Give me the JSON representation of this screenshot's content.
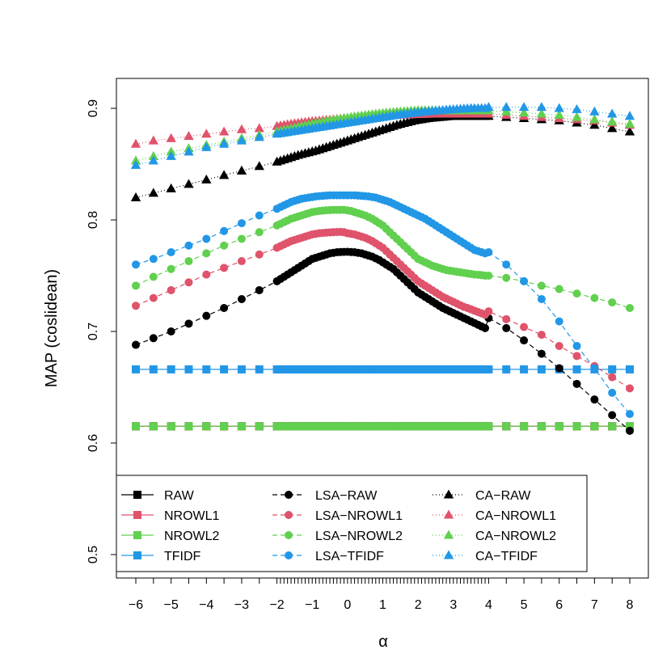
{
  "chart_data": {
    "type": "line",
    "xlabel": "α",
    "ylabel": "MAP (coslidean)",
    "xlim": [
      -6.5,
      8.5
    ],
    "ylim": [
      0.49,
      0.925
    ],
    "x_ticks": [
      -6,
      -5,
      -4,
      -3,
      -2,
      -1,
      0,
      1,
      2,
      3,
      4,
      5,
      6,
      7,
      8
    ],
    "x_tick_labels": [
      "−6",
      "−5",
      "−4",
      "−3",
      "−2",
      "−1",
      "0",
      "1",
      "2",
      "3",
      "4",
      "5",
      "6",
      "7",
      "8"
    ],
    "y_ticks": [
      0.5,
      0.6,
      0.7,
      0.8,
      0.9
    ],
    "y_tick_labels": [
      "0.5",
      "0.6",
      "0.7",
      "0.8",
      "0.9"
    ],
    "x": [
      -6,
      -5.5,
      -5,
      -4.5,
      -4,
      -3.5,
      -3,
      -2.5,
      -2,
      -1.9,
      -1.8,
      -1.7,
      -1.6,
      -1.5,
      -1.4,
      -1.3,
      -1.2,
      -1.1,
      -1,
      -0.9,
      -0.8,
      -0.7,
      -0.6,
      -0.5,
      -0.4,
      -0.3,
      -0.2,
      -0.1,
      0,
      0.1,
      0.2,
      0.3,
      0.4,
      0.5,
      0.6,
      0.7,
      0.8,
      0.9,
      1,
      1.1,
      1.2,
      1.3,
      1.4,
      1.5,
      1.6,
      1.7,
      1.8,
      1.9,
      2,
      2.1,
      2.2,
      2.3,
      2.4,
      2.5,
      2.6,
      2.7,
      2.8,
      2.9,
      3,
      3.1,
      3.2,
      3.3,
      3.4,
      3.5,
      3.6,
      3.7,
      3.8,
      3.9,
      4,
      4.5,
      5,
      5.5,
      6,
      6.5,
      7,
      7.5,
      8
    ],
    "colors": {
      "RAW": "#000000",
      "NROWL1": "#DF536B",
      "NROWL2": "#61D04F",
      "TFIDF": "#2297E6"
    },
    "legend": {
      "placement": "bottom-left",
      "columns": [
        [
          "RAW",
          "NROWL1",
          "NROWL2",
          "TFIDF"
        ],
        [
          "LSA−RAW",
          "LSA−NROWL1",
          "LSA−NROWL2",
          "LSA−TFIDF"
        ],
        [
          "CA−RAW",
          "CA−NROWL1",
          "CA−NROWL2",
          "CA−TFIDF"
        ]
      ]
    },
    "series": [
      {
        "name": "RAW",
        "method": "plain",
        "base": "RAW",
        "constant": 0.615
      },
      {
        "name": "NROWL1",
        "method": "plain",
        "base": "NROWL1",
        "constant": 0.615
      },
      {
        "name": "NROWL2",
        "method": "plain",
        "base": "NROWL2",
        "constant": 0.615
      },
      {
        "name": "TFIDF",
        "method": "plain",
        "base": "TFIDF",
        "constant": 0.666
      },
      {
        "name": "LSA−RAW",
        "method": "lsa",
        "base": "RAW",
        "values": [
          0.688,
          0.694,
          0.7,
          0.707,
          0.714,
          0.721,
          0.729,
          0.737,
          0.745,
          0.747,
          0.749,
          0.751,
          0.753,
          0.755,
          0.757,
          0.759,
          0.761,
          0.763,
          0.765,
          0.766,
          0.767,
          0.768,
          0.769,
          0.77,
          0.7705,
          0.771,
          0.7712,
          0.7713,
          0.7714,
          0.7712,
          0.771,
          0.7705,
          0.77,
          0.769,
          0.768,
          0.767,
          0.7655,
          0.764,
          0.762,
          0.76,
          0.758,
          0.756,
          0.753,
          0.75,
          0.747,
          0.744,
          0.741,
          0.738,
          0.735,
          0.733,
          0.731,
          0.729,
          0.727,
          0.725,
          0.723,
          0.721,
          0.7195,
          0.718,
          0.7165,
          0.715,
          0.7135,
          0.712,
          0.7105,
          0.709,
          0.7075,
          0.706,
          0.7045,
          0.703,
          0.712,
          0.703,
          0.692,
          0.68,
          0.667,
          0.653,
          0.639,
          0.625,
          0.611
        ]
      },
      {
        "name": "LSA−NROWL1",
        "method": "lsa",
        "base": "NROWL1",
        "values": [
          0.723,
          0.73,
          0.737,
          0.744,
          0.751,
          0.757,
          0.763,
          0.769,
          0.775,
          0.7765,
          0.778,
          0.7795,
          0.781,
          0.782,
          0.783,
          0.784,
          0.785,
          0.786,
          0.787,
          0.7875,
          0.788,
          0.7883,
          0.7886,
          0.7888,
          0.789,
          0.7891,
          0.7892,
          0.789,
          0.788,
          0.7875,
          0.787,
          0.786,
          0.785,
          0.784,
          0.7825,
          0.781,
          0.779,
          0.777,
          0.775,
          0.772,
          0.769,
          0.766,
          0.763,
          0.76,
          0.757,
          0.754,
          0.751,
          0.748,
          0.745,
          0.743,
          0.741,
          0.739,
          0.737,
          0.735,
          0.733,
          0.731,
          0.7295,
          0.728,
          0.7265,
          0.725,
          0.7235,
          0.722,
          0.721,
          0.7198,
          0.7186,
          0.7174,
          0.7162,
          0.715,
          0.718,
          0.711,
          0.704,
          0.697,
          0.687,
          0.678,
          0.669,
          0.659,
          0.649
        ]
      },
      {
        "name": "LSA−NROWL2",
        "method": "lsa",
        "base": "NROWL2",
        "values": [
          0.741,
          0.749,
          0.756,
          0.763,
          0.77,
          0.777,
          0.783,
          0.789,
          0.795,
          0.7965,
          0.798,
          0.7995,
          0.801,
          0.802,
          0.803,
          0.804,
          0.805,
          0.806,
          0.807,
          0.8075,
          0.808,
          0.8083,
          0.8086,
          0.8088,
          0.809,
          0.809,
          0.809,
          0.809,
          0.8085,
          0.808,
          0.807,
          0.806,
          0.805,
          0.804,
          0.8025,
          0.801,
          0.799,
          0.797,
          0.795,
          0.792,
          0.789,
          0.786,
          0.783,
          0.78,
          0.777,
          0.774,
          0.771,
          0.768,
          0.765,
          0.7635,
          0.762,
          0.7605,
          0.759,
          0.758,
          0.757,
          0.756,
          0.755,
          0.7545,
          0.754,
          0.7535,
          0.753,
          0.7525,
          0.752,
          0.7515,
          0.751,
          0.7508,
          0.7505,
          0.75,
          0.75,
          0.748,
          0.745,
          0.741,
          0.738,
          0.734,
          0.73,
          0.726,
          0.721
        ]
      },
      {
        "name": "LSA−TFIDF",
        "method": "lsa",
        "base": "TFIDF",
        "values": [
          0.76,
          0.765,
          0.771,
          0.777,
          0.783,
          0.79,
          0.797,
          0.804,
          0.81,
          0.8115,
          0.813,
          0.8145,
          0.816,
          0.817,
          0.818,
          0.819,
          0.8195,
          0.82,
          0.8205,
          0.821,
          0.8213,
          0.8216,
          0.8218,
          0.822,
          0.822,
          0.822,
          0.822,
          0.822,
          0.822,
          0.822,
          0.822,
          0.8218,
          0.8216,
          0.8213,
          0.821,
          0.8205,
          0.82,
          0.819,
          0.818,
          0.817,
          0.816,
          0.8145,
          0.813,
          0.8115,
          0.81,
          0.8085,
          0.807,
          0.8055,
          0.804,
          0.8025,
          0.801,
          0.799,
          0.797,
          0.795,
          0.793,
          0.791,
          0.789,
          0.787,
          0.785,
          0.783,
          0.781,
          0.779,
          0.777,
          0.775,
          0.773,
          0.772,
          0.771,
          0.77,
          0.771,
          0.76,
          0.745,
          0.729,
          0.709,
          0.687,
          0.667,
          0.645,
          0.626
        ]
      },
      {
        "name": "CA−RAW",
        "method": "ca",
        "base": "RAW",
        "values": [
          0.82,
          0.824,
          0.828,
          0.832,
          0.836,
          0.84,
          0.844,
          0.848,
          0.852,
          0.853,
          0.854,
          0.855,
          0.856,
          0.857,
          0.858,
          0.8588,
          0.8596,
          0.8604,
          0.8612,
          0.862,
          0.863,
          0.864,
          0.865,
          0.866,
          0.867,
          0.868,
          0.869,
          0.87,
          0.871,
          0.872,
          0.873,
          0.874,
          0.875,
          0.876,
          0.877,
          0.878,
          0.879,
          0.88,
          0.881,
          0.882,
          0.883,
          0.884,
          0.885,
          0.8858,
          0.8866,
          0.8874,
          0.8882,
          0.889,
          0.8895,
          0.89,
          0.8905,
          0.891,
          0.8913,
          0.8916,
          0.8919,
          0.8922,
          0.8925,
          0.8928,
          0.893,
          0.893,
          0.893,
          0.893,
          0.893,
          0.893,
          0.893,
          0.893,
          0.893,
          0.893,
          0.893,
          0.892,
          0.891,
          0.89,
          0.889,
          0.887,
          0.885,
          0.882,
          0.879
        ]
      },
      {
        "name": "CA−NROWL1",
        "method": "ca",
        "base": "NROWL1",
        "values": [
          0.868,
          0.871,
          0.873,
          0.875,
          0.877,
          0.879,
          0.881,
          0.882,
          0.884,
          0.8845,
          0.885,
          0.8855,
          0.886,
          0.8864,
          0.8868,
          0.8872,
          0.8876,
          0.888,
          0.8883,
          0.8886,
          0.8889,
          0.8892,
          0.8895,
          0.8898,
          0.89,
          0.8903,
          0.8906,
          0.8909,
          0.891,
          0.8913,
          0.8916,
          0.8919,
          0.892,
          0.8922,
          0.8924,
          0.8926,
          0.8928,
          0.893,
          0.8932,
          0.8934,
          0.8936,
          0.8938,
          0.894,
          0.8941,
          0.8942,
          0.8943,
          0.8944,
          0.8945,
          0.8946,
          0.8947,
          0.8948,
          0.8949,
          0.895,
          0.895,
          0.895,
          0.895,
          0.895,
          0.895,
          0.895,
          0.895,
          0.895,
          0.895,
          0.895,
          0.895,
          0.895,
          0.895,
          0.895,
          0.895,
          0.895,
          0.894,
          0.893,
          0.892,
          0.891,
          0.89,
          0.889,
          0.887,
          0.885
        ]
      },
      {
        "name": "CA−NROWL2",
        "method": "ca",
        "base": "NROWL2",
        "values": [
          0.853,
          0.857,
          0.861,
          0.864,
          0.867,
          0.87,
          0.873,
          0.876,
          0.879,
          0.8797,
          0.8804,
          0.8811,
          0.8818,
          0.8825,
          0.8832,
          0.8839,
          0.8846,
          0.8853,
          0.886,
          0.8866,
          0.8872,
          0.8878,
          0.8884,
          0.889,
          0.8895,
          0.89,
          0.8905,
          0.891,
          0.8915,
          0.892,
          0.8925,
          0.893,
          0.8934,
          0.8938,
          0.8942,
          0.8946,
          0.895,
          0.8953,
          0.8956,
          0.8959,
          0.8962,
          0.8965,
          0.8968,
          0.897,
          0.8972,
          0.8974,
          0.8976,
          0.8978,
          0.898,
          0.898,
          0.898,
          0.898,
          0.898,
          0.898,
          0.898,
          0.898,
          0.898,
          0.898,
          0.898,
          0.898,
          0.898,
          0.898,
          0.898,
          0.898,
          0.898,
          0.898,
          0.898,
          0.898,
          0.898,
          0.897,
          0.896,
          0.895,
          0.894,
          0.892,
          0.89,
          0.888,
          0.886
        ]
      },
      {
        "name": "CA−TFIDF",
        "method": "ca",
        "base": "TFIDF",
        "values": [
          0.849,
          0.853,
          0.857,
          0.861,
          0.865,
          0.868,
          0.871,
          0.874,
          0.877,
          0.8775,
          0.878,
          0.8785,
          0.879,
          0.8795,
          0.88,
          0.8805,
          0.881,
          0.8815,
          0.882,
          0.8825,
          0.883,
          0.8835,
          0.884,
          0.8845,
          0.885,
          0.8855,
          0.886,
          0.8865,
          0.887,
          0.8875,
          0.888,
          0.8885,
          0.889,
          0.8895,
          0.89,
          0.8905,
          0.891,
          0.8915,
          0.892,
          0.8925,
          0.893,
          0.8935,
          0.894,
          0.8944,
          0.8948,
          0.8952,
          0.8956,
          0.896,
          0.8963,
          0.8966,
          0.8969,
          0.8972,
          0.8975,
          0.8978,
          0.898,
          0.8983,
          0.8986,
          0.8989,
          0.899,
          0.8992,
          0.8994,
          0.8996,
          0.8998,
          0.9,
          0.9,
          0.9,
          0.9,
          0.9,
          0.901,
          0.901,
          0.901,
          0.901,
          0.9,
          0.899,
          0.897,
          0.895,
          0.893
        ]
      }
    ]
  }
}
